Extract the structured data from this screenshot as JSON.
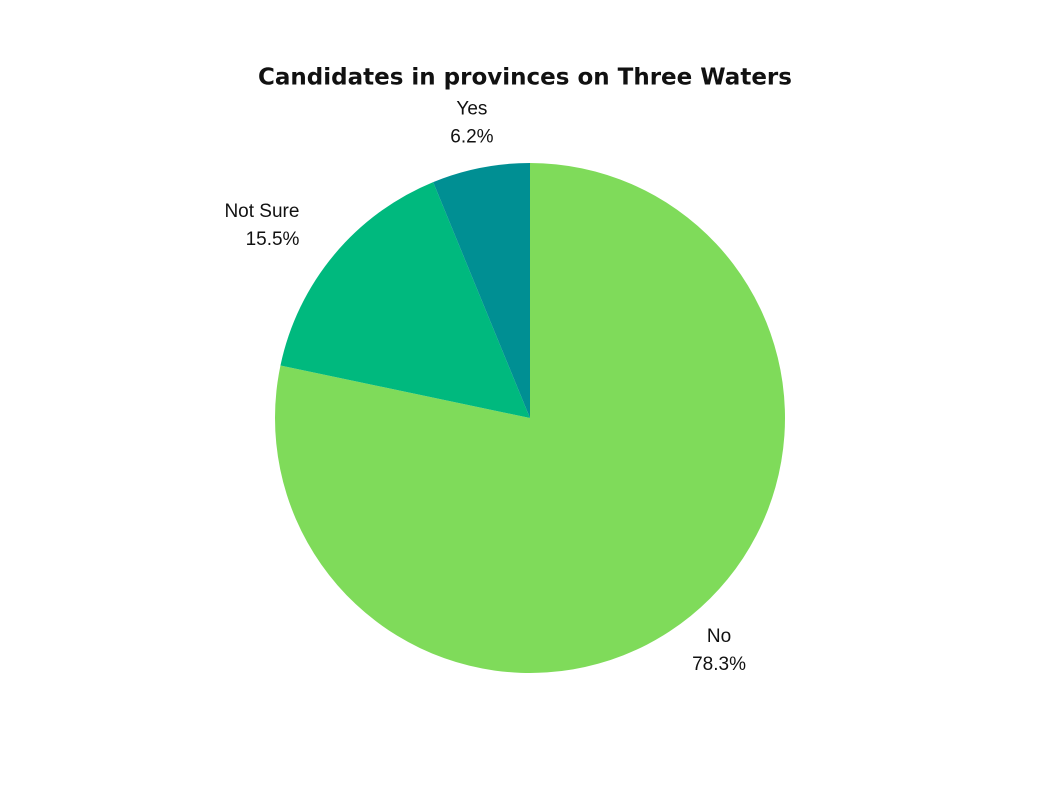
{
  "chart_data": {
    "type": "pie",
    "title": "Candidates in provinces on Three Waters",
    "categories": [
      "No",
      "Not Sure",
      "Yes"
    ],
    "values": [
      78.3,
      15.5,
      6.2
    ],
    "value_labels": [
      "78.3%",
      "15.5%",
      "6.2%"
    ],
    "colors": [
      "#7fdb5a",
      "#00b97e",
      "#008f93"
    ]
  }
}
